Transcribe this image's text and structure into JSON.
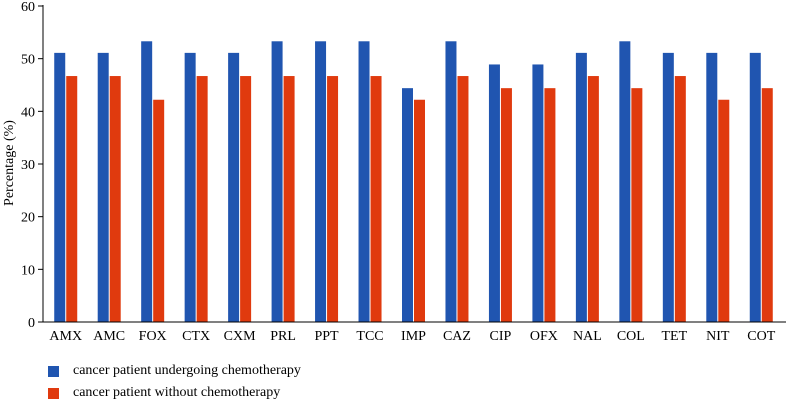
{
  "chart_data": {
    "type": "bar",
    "ylabel": "Percentage (%)",
    "xlabel": "",
    "ylim": [
      0,
      60
    ],
    "yticks": [
      0,
      10,
      20,
      30,
      40,
      50,
      60
    ],
    "grid": false,
    "legend_position": "bottom-left",
    "categories": [
      "AMX",
      "AMC",
      "FOX",
      "CTX",
      "CXM",
      "PRL",
      "PPT",
      "TCC",
      "IMP",
      "CAZ",
      "CIP",
      "OFX",
      "NAL",
      "COL",
      "TET",
      "NIT",
      "COT"
    ],
    "series": [
      {
        "name": "cancer patient undergoing chemotherapy",
        "color": "#2055b0",
        "values": [
          51.1,
          51.1,
          53.3,
          51.1,
          51.1,
          53.3,
          53.3,
          53.3,
          44.4,
          53.3,
          48.9,
          48.9,
          51.1,
          53.3,
          51.1,
          51.1,
          51.1
        ]
      },
      {
        "name": "cancer patient without chemotherapy",
        "color": "#e03a0e",
        "values": [
          46.7,
          46.7,
          42.2,
          46.7,
          46.7,
          46.7,
          46.7,
          46.7,
          42.2,
          46.7,
          44.4,
          44.4,
          46.7,
          44.4,
          46.7,
          42.2,
          44.4
        ]
      }
    ]
  }
}
